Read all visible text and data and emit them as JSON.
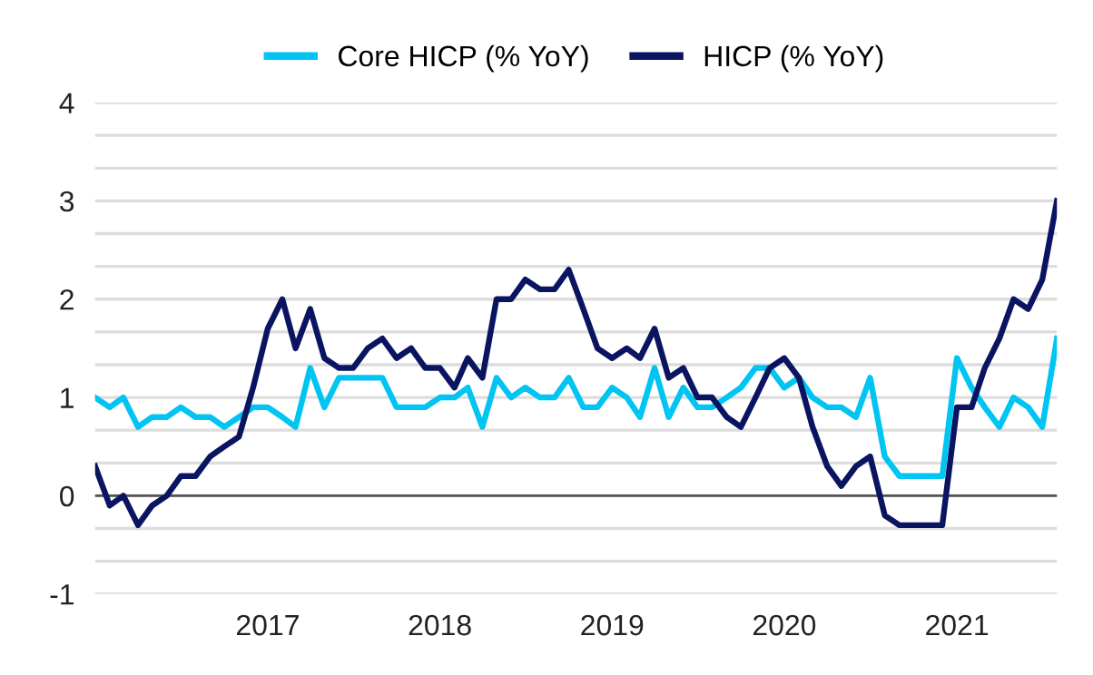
{
  "chart_data": {
    "type": "line",
    "x": [
      "2016-01",
      "2016-02",
      "2016-03",
      "2016-04",
      "2016-05",
      "2016-06",
      "2016-07",
      "2016-08",
      "2016-09",
      "2016-10",
      "2016-11",
      "2016-12",
      "2017-01",
      "2017-02",
      "2017-03",
      "2017-04",
      "2017-05",
      "2017-06",
      "2017-07",
      "2017-08",
      "2017-09",
      "2017-10",
      "2017-11",
      "2017-12",
      "2018-01",
      "2018-02",
      "2018-03",
      "2018-04",
      "2018-05",
      "2018-06",
      "2018-07",
      "2018-08",
      "2018-09",
      "2018-10",
      "2018-11",
      "2018-12",
      "2019-01",
      "2019-02",
      "2019-03",
      "2019-04",
      "2019-05",
      "2019-06",
      "2019-07",
      "2019-08",
      "2019-09",
      "2019-10",
      "2019-11",
      "2019-12",
      "2020-01",
      "2020-02",
      "2020-03",
      "2020-04",
      "2020-05",
      "2020-06",
      "2020-07",
      "2020-08",
      "2020-09",
      "2020-10",
      "2020-11",
      "2020-12",
      "2021-01",
      "2021-02",
      "2021-03",
      "2021-04",
      "2021-05",
      "2021-06",
      "2021-07",
      "2021-08"
    ],
    "series": [
      {
        "name": "Core HICP (% YoY)",
        "color": "#00c4f2",
        "values": [
          1.0,
          0.9,
          1.0,
          0.7,
          0.8,
          0.8,
          0.9,
          0.8,
          0.8,
          0.7,
          0.8,
          0.9,
          0.9,
          0.8,
          0.7,
          1.3,
          0.9,
          1.2,
          1.2,
          1.2,
          1.2,
          0.9,
          0.9,
          0.9,
          1.0,
          1.0,
          1.1,
          0.7,
          1.2,
          1.0,
          1.1,
          1.0,
          1.0,
          1.2,
          0.9,
          0.9,
          1.1,
          1.0,
          0.8,
          1.3,
          0.8,
          1.1,
          0.9,
          0.9,
          1.0,
          1.1,
          1.3,
          1.3,
          1.1,
          1.2,
          1.0,
          0.9,
          0.9,
          0.8,
          1.2,
          0.4,
          0.2,
          0.2,
          0.2,
          0.2,
          1.4,
          1.1,
          0.9,
          0.7,
          1.0,
          0.9,
          0.7,
          1.6
        ]
      },
      {
        "name": "HICP (% YoY)",
        "color": "#0b1460",
        "values": [
          0.3,
          -0.1,
          0.0,
          -0.3,
          -0.1,
          0.0,
          0.2,
          0.2,
          0.4,
          0.5,
          0.6,
          1.1,
          1.7,
          2.0,
          1.5,
          1.9,
          1.4,
          1.3,
          1.3,
          1.5,
          1.6,
          1.4,
          1.5,
          1.3,
          1.3,
          1.1,
          1.4,
          1.2,
          2.0,
          2.0,
          2.2,
          2.1,
          2.1,
          2.3,
          1.9,
          1.5,
          1.4,
          1.5,
          1.4,
          1.7,
          1.2,
          1.3,
          1.0,
          1.0,
          0.8,
          0.7,
          1.0,
          1.3,
          1.4,
          1.2,
          0.7,
          0.3,
          0.1,
          0.3,
          0.4,
          -0.2,
          -0.3,
          -0.3,
          -0.3,
          -0.3,
          0.9,
          0.9,
          1.3,
          1.6,
          2.0,
          1.9,
          2.2,
          3.0
        ]
      }
    ],
    "xlim": [
      "2016-01",
      "2021-08"
    ],
    "xticks": [
      "2017",
      "2018",
      "2019",
      "2020",
      "2021"
    ],
    "ylim": [
      -1,
      4
    ],
    "yticks": [
      -1,
      {
        "value": -0.667,
        "label": null
      },
      {
        "value": -0.333,
        "label": null
      },
      0,
      {
        "value": 0.333,
        "label": null
      },
      {
        "value": 0.667,
        "label": null
      },
      1,
      {
        "value": 1.333,
        "label": null
      },
      {
        "value": 1.667,
        "label": null
      },
      2,
      {
        "value": 2.333,
        "label": null
      },
      {
        "value": 2.667,
        "label": null
      },
      3,
      {
        "value": 3.333,
        "label": null
      },
      {
        "value": 3.667,
        "label": null
      },
      4
    ],
    "ref_lines": [
      {
        "axis": "y",
        "value": 0,
        "color": "#555555"
      }
    ],
    "grid": "y",
    "legend": "top",
    "marker": "none",
    "line_style": "solid"
  }
}
